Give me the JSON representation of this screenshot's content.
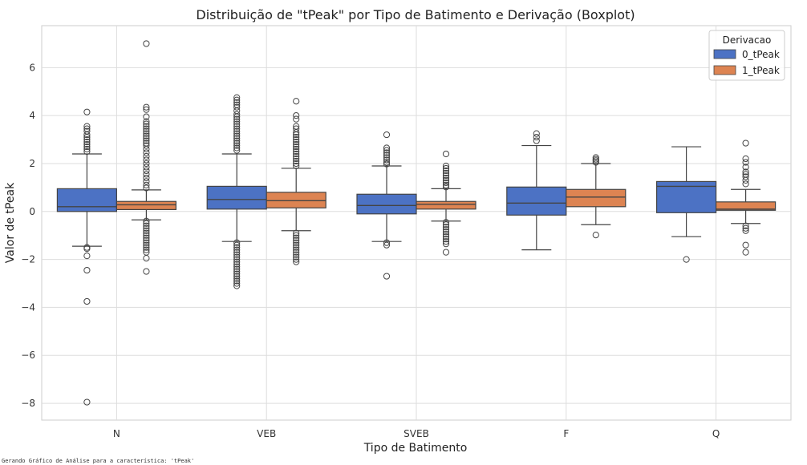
{
  "chart_data": {
    "type": "boxplot",
    "title": "Distribuição de \"tPeak\" por Tipo de Batimento e Derivação (Boxplot)",
    "xlabel": "Tipo de Batimento",
    "ylabel": "Valor de tPeak",
    "categories": [
      "N",
      "VEB",
      "SVEB",
      "F",
      "Q"
    ],
    "ylim": [
      -8.7,
      7.75
    ],
    "yticks": [
      -8,
      -6,
      -4,
      -2,
      0,
      2,
      4,
      6
    ],
    "grid": true,
    "legend": {
      "title": "Derivacao",
      "position": "top-right"
    },
    "series": [
      {
        "name": "0_tPeak",
        "color": "#4c72c4",
        "boxes": [
          {
            "q1": 0.0,
            "median": 0.2,
            "q3": 0.95,
            "whisker_low": -1.45,
            "whisker_high": 2.4,
            "outliers": [
              4.15,
              3.55,
              3.45,
              3.35,
              3.2,
              3.1,
              3.0,
              2.9,
              2.8,
              2.7,
              2.6,
              2.5,
              -1.5,
              -1.55,
              -1.85,
              -2.45,
              -3.75,
              -7.95
            ]
          },
          {
            "q1": 0.1,
            "median": 0.5,
            "q3": 1.05,
            "whisker_low": -1.25,
            "whisker_high": 2.4,
            "outliers": [
              4.75,
              4.65,
              4.55,
              4.45,
              4.35,
              4.2,
              4.05,
              3.95,
              3.85,
              3.75,
              3.65,
              3.55,
              3.45,
              3.35,
              3.25,
              3.15,
              3.05,
              2.95,
              2.85,
              2.75,
              2.65,
              2.55,
              -1.3,
              -1.4,
              -1.5,
              -1.6,
              -1.7,
              -1.8,
              -1.9,
              -2.0,
              -2.1,
              -2.2,
              -2.3,
              -2.4,
              -2.5,
              -2.6,
              -2.7,
              -2.8,
              -2.9,
              -3.0,
              -3.1
            ]
          },
          {
            "q1": -0.1,
            "median": 0.25,
            "q3": 0.72,
            "whisker_low": -1.25,
            "whisker_high": 1.9,
            "outliers": [
              3.2,
              2.65,
              2.55,
              2.45,
              2.35,
              2.25,
              2.15,
              2.05,
              1.98,
              -1.3,
              -1.4,
              -2.7
            ]
          },
          {
            "q1": -0.15,
            "median": 0.35,
            "q3": 1.02,
            "whisker_low": -1.6,
            "whisker_high": 2.75,
            "outliers": [
              3.25,
              3.1,
              2.95
            ]
          },
          {
            "q1": -0.05,
            "median": 1.05,
            "q3": 1.25,
            "whisker_low": -1.05,
            "whisker_high": 2.7,
            "outliers": [
              -2.0
            ]
          }
        ]
      },
      {
        "name": "1_tPeak",
        "color": "#dd8452",
        "boxes": [
          {
            "q1": 0.08,
            "median": 0.28,
            "q3": 0.42,
            "whisker_low": -0.35,
            "whisker_high": 0.9,
            "outliers": [
              7.0,
              4.35,
              4.25,
              3.95,
              3.75,
              3.65,
              3.55,
              3.45,
              3.35,
              3.25,
              3.15,
              3.05,
              2.95,
              2.85,
              2.75,
              2.6,
              2.45,
              2.3,
              2.15,
              2.0,
              1.85,
              1.7,
              1.55,
              1.4,
              1.25,
              1.1,
              0.98,
              -0.4,
              -0.5,
              -0.6,
              -0.7,
              -0.8,
              -0.9,
              -1.0,
              -1.1,
              -1.2,
              -1.3,
              -1.4,
              -1.5,
              -1.6,
              -1.7,
              -1.95,
              -2.5
            ]
          },
          {
            "q1": 0.15,
            "median": 0.45,
            "q3": 0.8,
            "whisker_low": -0.8,
            "whisker_high": 1.8,
            "outliers": [
              4.6,
              4.0,
              3.85,
              3.55,
              3.45,
              3.3,
              3.2,
              3.1,
              3.0,
              2.9,
              2.8,
              2.7,
              2.6,
              2.5,
              2.4,
              2.3,
              2.2,
              2.1,
              2.0,
              1.9,
              -0.9,
              -1.0,
              -1.1,
              -1.2,
              -1.3,
              -1.4,
              -1.5,
              -1.6,
              -1.7,
              -1.8,
              -1.9,
              -2.0,
              -2.1
            ]
          },
          {
            "q1": 0.1,
            "median": 0.3,
            "q3": 0.42,
            "whisker_low": -0.4,
            "whisker_high": 0.95,
            "outliers": [
              2.4,
              1.9,
              1.8,
              1.7,
              1.6,
              1.5,
              1.4,
              1.3,
              1.2,
              1.1,
              1.02,
              -0.45,
              -0.55,
              -0.65,
              -0.75,
              -0.85,
              -0.95,
              -1.05,
              -1.15,
              -1.25,
              -1.35,
              -1.7
            ]
          },
          {
            "q1": 0.2,
            "median": 0.6,
            "q3": 0.92,
            "whisker_low": -0.55,
            "whisker_high": 2.0,
            "outliers": [
              2.25,
              2.18,
              2.12,
              2.05,
              -0.98
            ]
          },
          {
            "q1": 0.05,
            "median": 0.1,
            "q3": 0.4,
            "whisker_low": -0.5,
            "whisker_high": 0.92,
            "outliers": [
              2.85,
              2.2,
              2.05,
              1.85,
              1.65,
              1.55,
              1.45,
              1.3,
              1.15,
              -0.6,
              -0.7,
              -0.8,
              -1.4,
              -1.7
            ]
          }
        ]
      }
    ]
  },
  "footer_text": "Gerando Gráfico de Análise para a característica: 'tPeak'"
}
